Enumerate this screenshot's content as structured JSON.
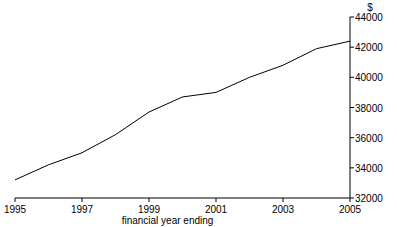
{
  "chart_data": {
    "type": "line",
    "y_label": "$",
    "x_label": "financial year ending",
    "x": [
      1995,
      1996,
      1997,
      1998,
      1999,
      2000,
      2001,
      2002,
      2003,
      2004,
      2005
    ],
    "series": [
      {
        "color": "#000000",
        "values": [
          33200,
          34200,
          35000,
          36200,
          37700,
          38700,
          39000,
          40000,
          40800,
          41900,
          42400
        ]
      }
    ],
    "xlim": [
      1995,
      2005
    ],
    "xticks": [
      1995,
      1997,
      1999,
      2001,
      2003,
      2005
    ],
    "ylim": [
      32000,
      44000
    ],
    "yticks": [
      32000,
      34000,
      36000,
      38000,
      40000,
      42000,
      44000
    ],
    "grid": false
  }
}
